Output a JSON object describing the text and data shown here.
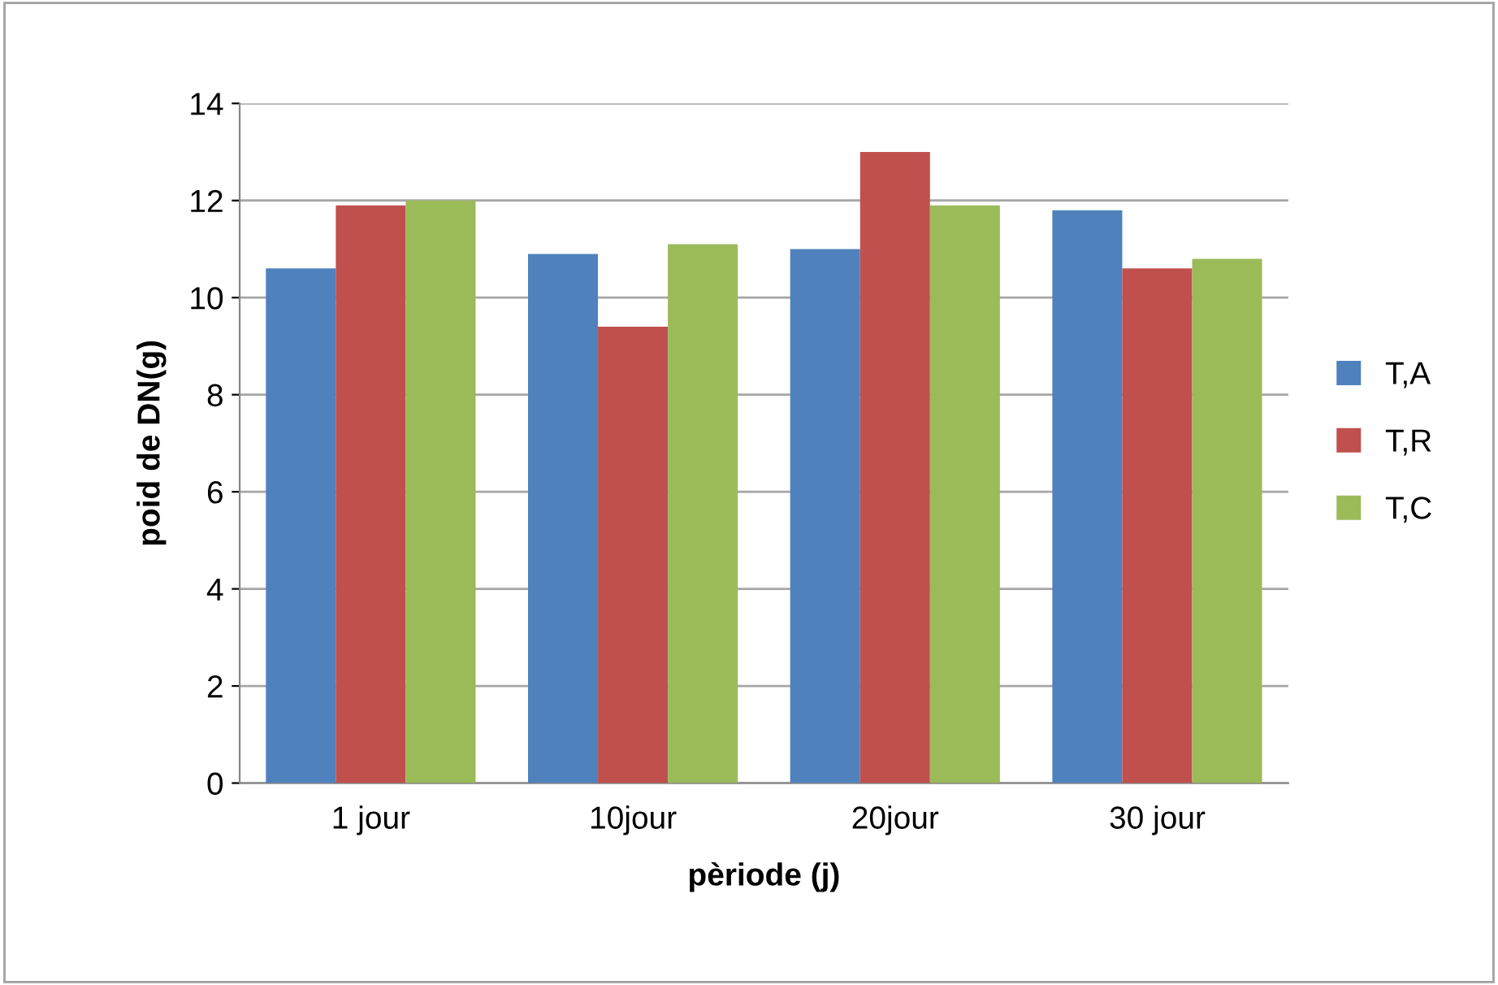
{
  "chart_data": {
    "type": "bar",
    "xlabel": "pèriode (j)",
    "ylabel": "poid de DN(g)",
    "categories": [
      "1 jour",
      "10jour",
      "20jour",
      "30 jour"
    ],
    "series": [
      {
        "name": "T,A",
        "color": "#4f81bd",
        "values": [
          10.6,
          10.9,
          11.0,
          11.8
        ]
      },
      {
        "name": "T,R",
        "color": "#c0504d",
        "values": [
          11.9,
          9.4,
          13.0,
          10.6
        ]
      },
      {
        "name": "T,C",
        "color": "#9bbb59",
        "values": [
          12.0,
          11.1,
          11.9,
          10.8
        ]
      }
    ],
    "ylim": [
      0,
      14
    ],
    "yticks": [
      0,
      2,
      4,
      6,
      8,
      10,
      12,
      14
    ],
    "grid": "y",
    "legend": "right"
  }
}
